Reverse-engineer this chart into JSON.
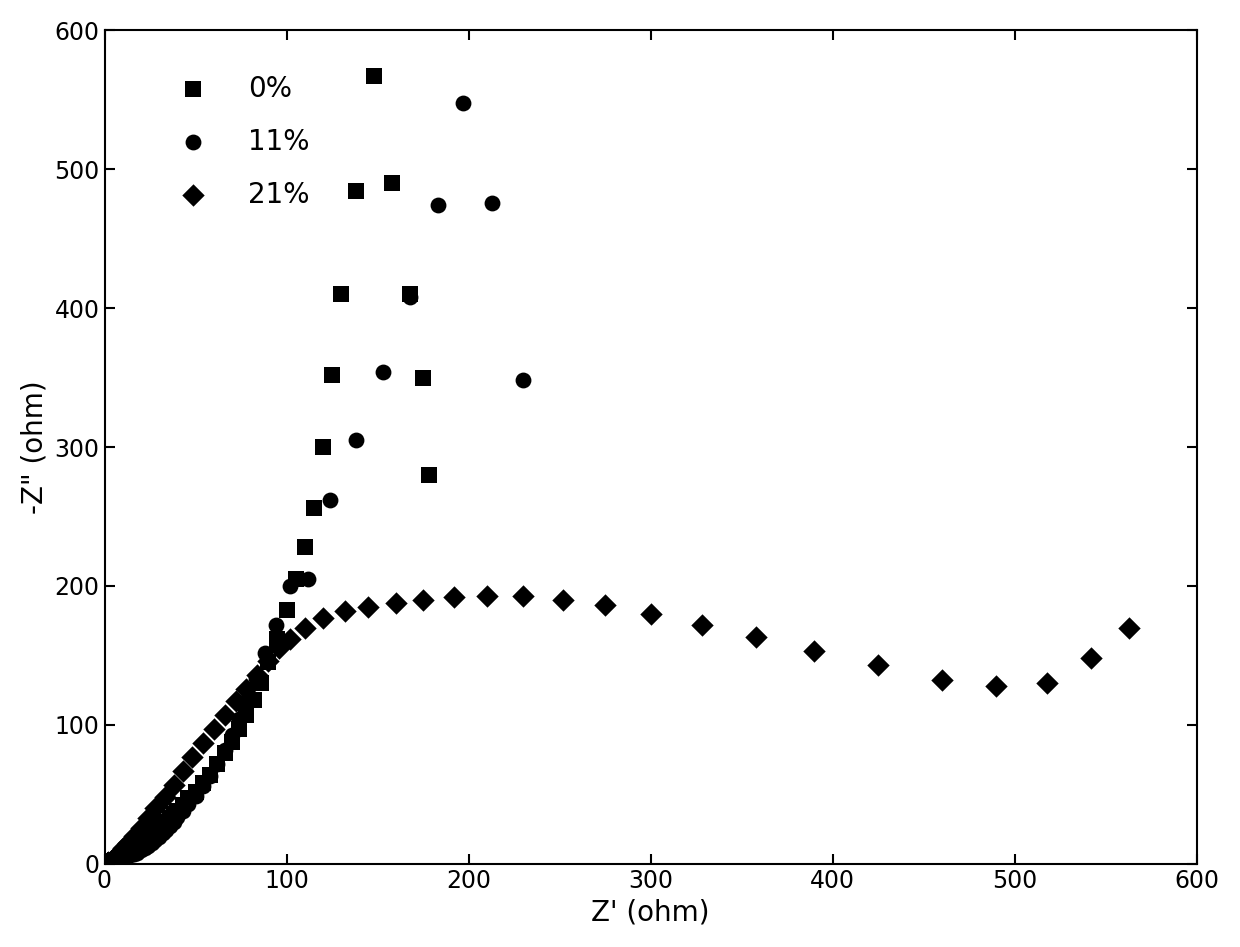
{
  "title": "",
  "xlabel": "Z' (ohm)",
  "ylabel": "-Z\" (ohm)",
  "xlim": [
    0,
    600
  ],
  "ylim": [
    0,
    600
  ],
  "xticks": [
    0,
    100,
    200,
    300,
    400,
    500,
    600
  ],
  "yticks": [
    0,
    100,
    200,
    300,
    400,
    500,
    600
  ],
  "background_color": "#ffffff",
  "series": [
    {
      "label": "0%",
      "marker": "s",
      "color": "#000000",
      "markersize": 11,
      "x": [
        2,
        4,
        6,
        8,
        10,
        12,
        14,
        16,
        18,
        20,
        22,
        24,
        26,
        28,
        30,
        32,
        34,
        36,
        38,
        40,
        43,
        46,
        50,
        54,
        58,
        62,
        66,
        70,
        74,
        78,
        82,
        86,
        90,
        95,
        100,
        105,
        110,
        115,
        120,
        125,
        130,
        138,
        148,
        158,
        168,
        175,
        178
      ],
      "y": [
        1,
        2,
        3,
        4,
        5,
        7,
        8,
        10,
        12,
        14,
        16,
        18,
        20,
        23,
        25,
        28,
        30,
        33,
        36,
        38,
        42,
        47,
        52,
        58,
        64,
        72,
        80,
        88,
        97,
        107,
        118,
        130,
        145,
        162,
        183,
        205,
        228,
        256,
        300,
        352,
        410,
        484,
        567,
        490,
        410,
        350,
        280
      ]
    },
    {
      "label": "11%",
      "marker": "o",
      "color": "#000000",
      "markersize": 11,
      "x": [
        2,
        4,
        6,
        8,
        10,
        12,
        14,
        16,
        18,
        20,
        22,
        24,
        26,
        28,
        30,
        32,
        34,
        36,
        38,
        40,
        43,
        46,
        50,
        54,
        58,
        62,
        66,
        70,
        74,
        78,
        83,
        88,
        94,
        102,
        112,
        124,
        138,
        153,
        168,
        183,
        197,
        213,
        230
      ],
      "y": [
        1,
        2,
        2,
        3,
        4,
        5,
        6,
        7,
        8,
        10,
        11,
        13,
        15,
        17,
        19,
        22,
        24,
        27,
        30,
        34,
        38,
        43,
        49,
        56,
        63,
        72,
        82,
        93,
        104,
        117,
        134,
        152,
        172,
        200,
        205,
        262,
        305,
        354,
        408,
        474,
        548,
        476,
        348
      ]
    },
    {
      "label": "21%",
      "marker": "D",
      "color": "#000000",
      "markersize": 11,
      "x": [
        2,
        4,
        6,
        8,
        10,
        13,
        16,
        20,
        24,
        28,
        33,
        38,
        43,
        48,
        54,
        60,
        66,
        72,
        78,
        84,
        90,
        96,
        102,
        110,
        120,
        132,
        145,
        160,
        175,
        192,
        210,
        230,
        252,
        275,
        300,
        328,
        358,
        390,
        425,
        460,
        490,
        518,
        542,
        563
      ],
      "y": [
        1,
        3,
        5,
        8,
        11,
        15,
        20,
        26,
        33,
        40,
        48,
        57,
        67,
        77,
        87,
        97,
        107,
        117,
        126,
        136,
        146,
        155,
        162,
        170,
        177,
        182,
        185,
        188,
        190,
        192,
        193,
        193,
        190,
        186,
        180,
        172,
        163,
        153,
        143,
        132,
        128,
        130,
        148,
        170
      ]
    }
  ],
  "legend_loc": "upper left",
  "fontsize_axis_label": 20,
  "fontsize_tick": 17,
  "fontsize_legend": 20
}
